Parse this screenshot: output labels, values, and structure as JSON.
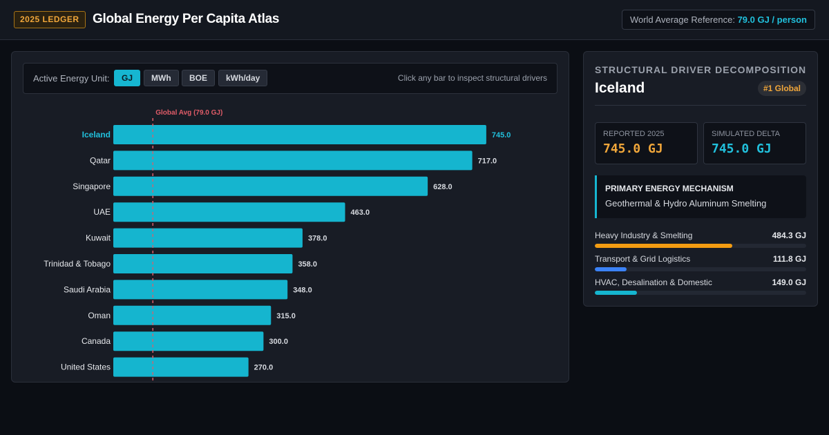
{
  "header": {
    "badge": "2025 LEDGER",
    "title": "Global Energy Per Capita Atlas",
    "reference_label": "World Average Reference:",
    "reference_value": "79.0 GJ / person"
  },
  "controls": {
    "unit_label": "Active Energy Unit:",
    "units": [
      "GJ",
      "MWh",
      "BOE",
      "kWh/day"
    ],
    "active_unit": "GJ",
    "hint": "Click any bar to inspect structural drivers"
  },
  "chart_data": {
    "type": "bar",
    "orientation": "horizontal",
    "categories": [
      "Iceland",
      "Qatar",
      "Singapore",
      "UAE",
      "Kuwait",
      "Trinidad & Tobago",
      "Saudi Arabia",
      "Oman",
      "Canada",
      "United States"
    ],
    "values": [
      745.0,
      717.0,
      628.0,
      463.0,
      378.0,
      358.0,
      348.0,
      315.0,
      300.0,
      270.0
    ],
    "value_labels": [
      "745.0",
      "717.0",
      "628.0",
      "463.0",
      "378.0",
      "358.0",
      "348.0",
      "315.0",
      "300.0",
      "270.0"
    ],
    "reference_line": {
      "value": 79.0,
      "label": "Global Avg (79.0 GJ)"
    },
    "selected": "Iceland",
    "xlim": [
      0,
      850
    ],
    "colors": {
      "bar": "#15b5cf",
      "selected_label": "#21c0dc",
      "reference": "#e05c68"
    }
  },
  "details": {
    "heading": "STRUCTURAL DRIVER DECOMPOSITION",
    "country": "Iceland",
    "rank": "#1 Global",
    "reported_label": "REPORTED 2025",
    "reported_value": "745.0 GJ",
    "delta_label": "SIMULATED DELTA",
    "delta_value": "745.0 GJ",
    "mechanism_label": "PRIMARY ENERGY MECHANISM",
    "mechanism_value": "Geothermal & Hydro Aluminum Smelting",
    "drivers": [
      {
        "label": "Heavy Industry & Smelting",
        "value": "484.3 GJ",
        "share": 0.65,
        "color": "#f39c12"
      },
      {
        "label": "Transport & Grid Logistics",
        "value": "111.8 GJ",
        "share": 0.15,
        "color": "#3b82f6"
      },
      {
        "label": "HVAC, Desalination & Domestic",
        "value": "149.0 GJ",
        "share": 0.2,
        "color": "#15b5cf"
      }
    ]
  }
}
